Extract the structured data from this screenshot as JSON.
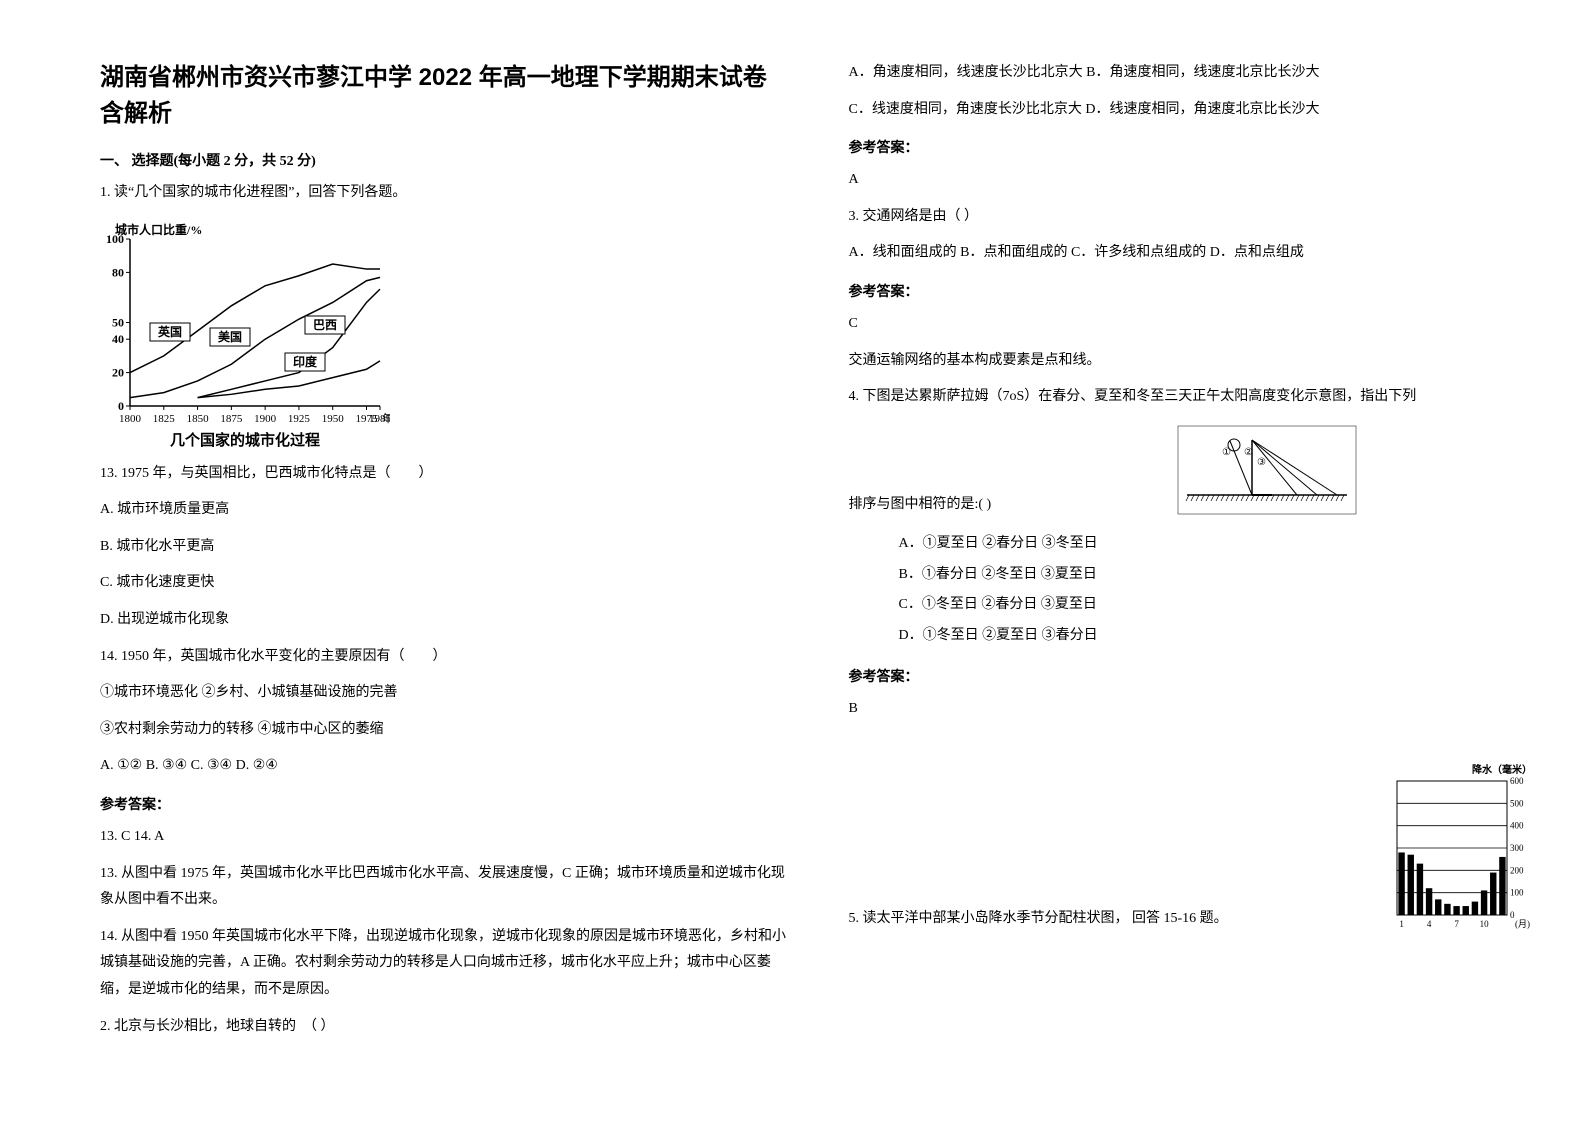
{
  "title": "湖南省郴州市资兴市蓼江中学 2022 年高一地理下学期期末试卷含解析",
  "section1_header": "一、 选择题(每小题 2 分，共 52 分)",
  "q1": {
    "stem": "1. 读“几个国家的城市化进程图”，回答下列各题。",
    "chart": {
      "type": "line",
      "y_label": "城市人口比重/%",
      "x_label_suffix": "年",
      "caption": "几个国家的城市化过程",
      "ylim": [
        0,
        100
      ],
      "yticks": [
        0,
        20,
        40,
        50,
        80,
        100
      ],
      "xticks": [
        1800,
        1825,
        1850,
        1875,
        1900,
        1925,
        1950,
        1975,
        1985
      ],
      "series": [
        {
          "name": "英国",
          "label_x": 70,
          "label_y": 115,
          "points": [
            [
              1800,
              20
            ],
            [
              1825,
              30
            ],
            [
              1850,
              45
            ],
            [
              1875,
              60
            ],
            [
              1900,
              72
            ],
            [
              1925,
              78
            ],
            [
              1950,
              85
            ],
            [
              1975,
              82
            ],
            [
              1985,
              82
            ]
          ]
        },
        {
          "name": "美国",
          "label_x": 130,
          "label_y": 120,
          "points": [
            [
              1800,
              5
            ],
            [
              1825,
              8
            ],
            [
              1850,
              15
            ],
            [
              1875,
              25
            ],
            [
              1900,
              40
            ],
            [
              1925,
              52
            ],
            [
              1950,
              62
            ],
            [
              1975,
              75
            ],
            [
              1985,
              77
            ]
          ]
        },
        {
          "name": "巴西",
          "label_x": 225,
          "label_y": 108,
          "points": [
            [
              1850,
              5
            ],
            [
              1875,
              10
            ],
            [
              1900,
              15
            ],
            [
              1925,
              20
            ],
            [
              1950,
              35
            ],
            [
              1975,
              62
            ],
            [
              1985,
              70
            ]
          ]
        },
        {
          "name": "印度",
          "label_x": 205,
          "label_y": 145,
          "points": [
            [
              1850,
              5
            ],
            [
              1875,
              7
            ],
            [
              1900,
              10
            ],
            [
              1925,
              12
            ],
            [
              1950,
              17
            ],
            [
              1975,
              22
            ],
            [
              1985,
              27
            ]
          ]
        }
      ],
      "axis_color": "#000000",
      "line_color": "#000000",
      "background": "#ffffff",
      "font_size": 12
    },
    "q13": "13.  1975 年，与英国相比，巴西城市化特点是（　　）",
    "q13_a": "A.  城市环境质量更高",
    "q13_b": "B.  城市化水平更高",
    "q13_c": "C.  城市化速度更快",
    "q13_d": "D.  出现逆城市化现象",
    "q14": "14.  1950 年，英国城市化水平变化的主要原因有（　　）",
    "q14_l1": "①城市环境恶化 ②乡村、小城镇基础设施的完善",
    "q14_l2": "③农村剩余劳动力的转移 ④城市中心区的萎缩",
    "q14_opts": "A.  ①②        B.  ③④        C.  ③④        D.  ②④",
    "ans_label": "参考答案：",
    "ans_line": "13.  C          14.  A",
    "exp1": "13. 从图中看 1975 年，英国城市化水平比巴西城市化水平高、发展速度慢，C 正确；城市环境质量和逆城市化现象从图中看不出来。",
    "exp2": "14. 从图中看 1950 年英国城市化水平下降，出现逆城市化现象，逆城市化现象的原因是城市环境恶化，乡村和小城镇基础设施的完善，A 正确。农村剩余劳动力的转移是人口向城市迁移，城市化水平应上升；城市中心区萎缩，是逆城市化的结果，而不是原因。"
  },
  "q2": {
    "stem": "2. 北京与长沙相比，地球自转的　（  ）",
    "a": "A．角速度相同，线速度长沙比北京大 B．角速度相同，线速度北京比长沙大",
    "c": "C．线速度相同，角速度长沙比北京大    D．线速度相同，角速度北京比长沙大",
    "ans_label": "参考答案：",
    "ans": "A"
  },
  "q3": {
    "stem": "3. 交通网络是由（          ）",
    "opts": "A．线和面组成的           B．点和面组成的           C．许多线和点组成的                 D．点和点组成",
    "ans_label": "参考答案：",
    "ans": "C",
    "exp": "交通运输网络的基本构成要素是点和线。"
  },
  "q4": {
    "stem": "4. 下图是达累斯萨拉姆（7oS）在春分、夏至和冬至三天正午太阳高度变化示意图，指出下列",
    "stem2": "排序与图中相符的是:(    )",
    "a": "A．①夏至日 ②春分日 ③冬至日",
    "b": "B．①春分日 ②冬至日 ③夏至日",
    "c": "C．①冬至日 ②春分日 ③夏至日",
    "d": "D．①冬至日 ②夏至日 ③春分日",
    "ans_label": "参考答案：",
    "ans": "B",
    "diagram": {
      "type": "sun-angle",
      "ground_hatch": true,
      "labels": [
        "①",
        "②",
        "③"
      ],
      "line_color": "#000000"
    }
  },
  "q5": {
    "stem": "5. 读太平洋中部某小岛降水季节分配柱状图， 回答 15-16 题。",
    "chart": {
      "type": "bar",
      "y_label_top": "降水（毫米）",
      "x_label": "(月)",
      "ylim": [
        0,
        600
      ],
      "yticks": [
        0,
        100,
        200,
        300,
        400,
        500,
        600
      ],
      "xticks": [
        1,
        4,
        7,
        10
      ],
      "values": [
        280,
        270,
        230,
        120,
        70,
        50,
        40,
        40,
        60,
        110,
        190,
        260
      ],
      "bar_color": "#000000",
      "grid_color": "#000000",
      "background": "#ffffff",
      "font_size": 10
    }
  }
}
